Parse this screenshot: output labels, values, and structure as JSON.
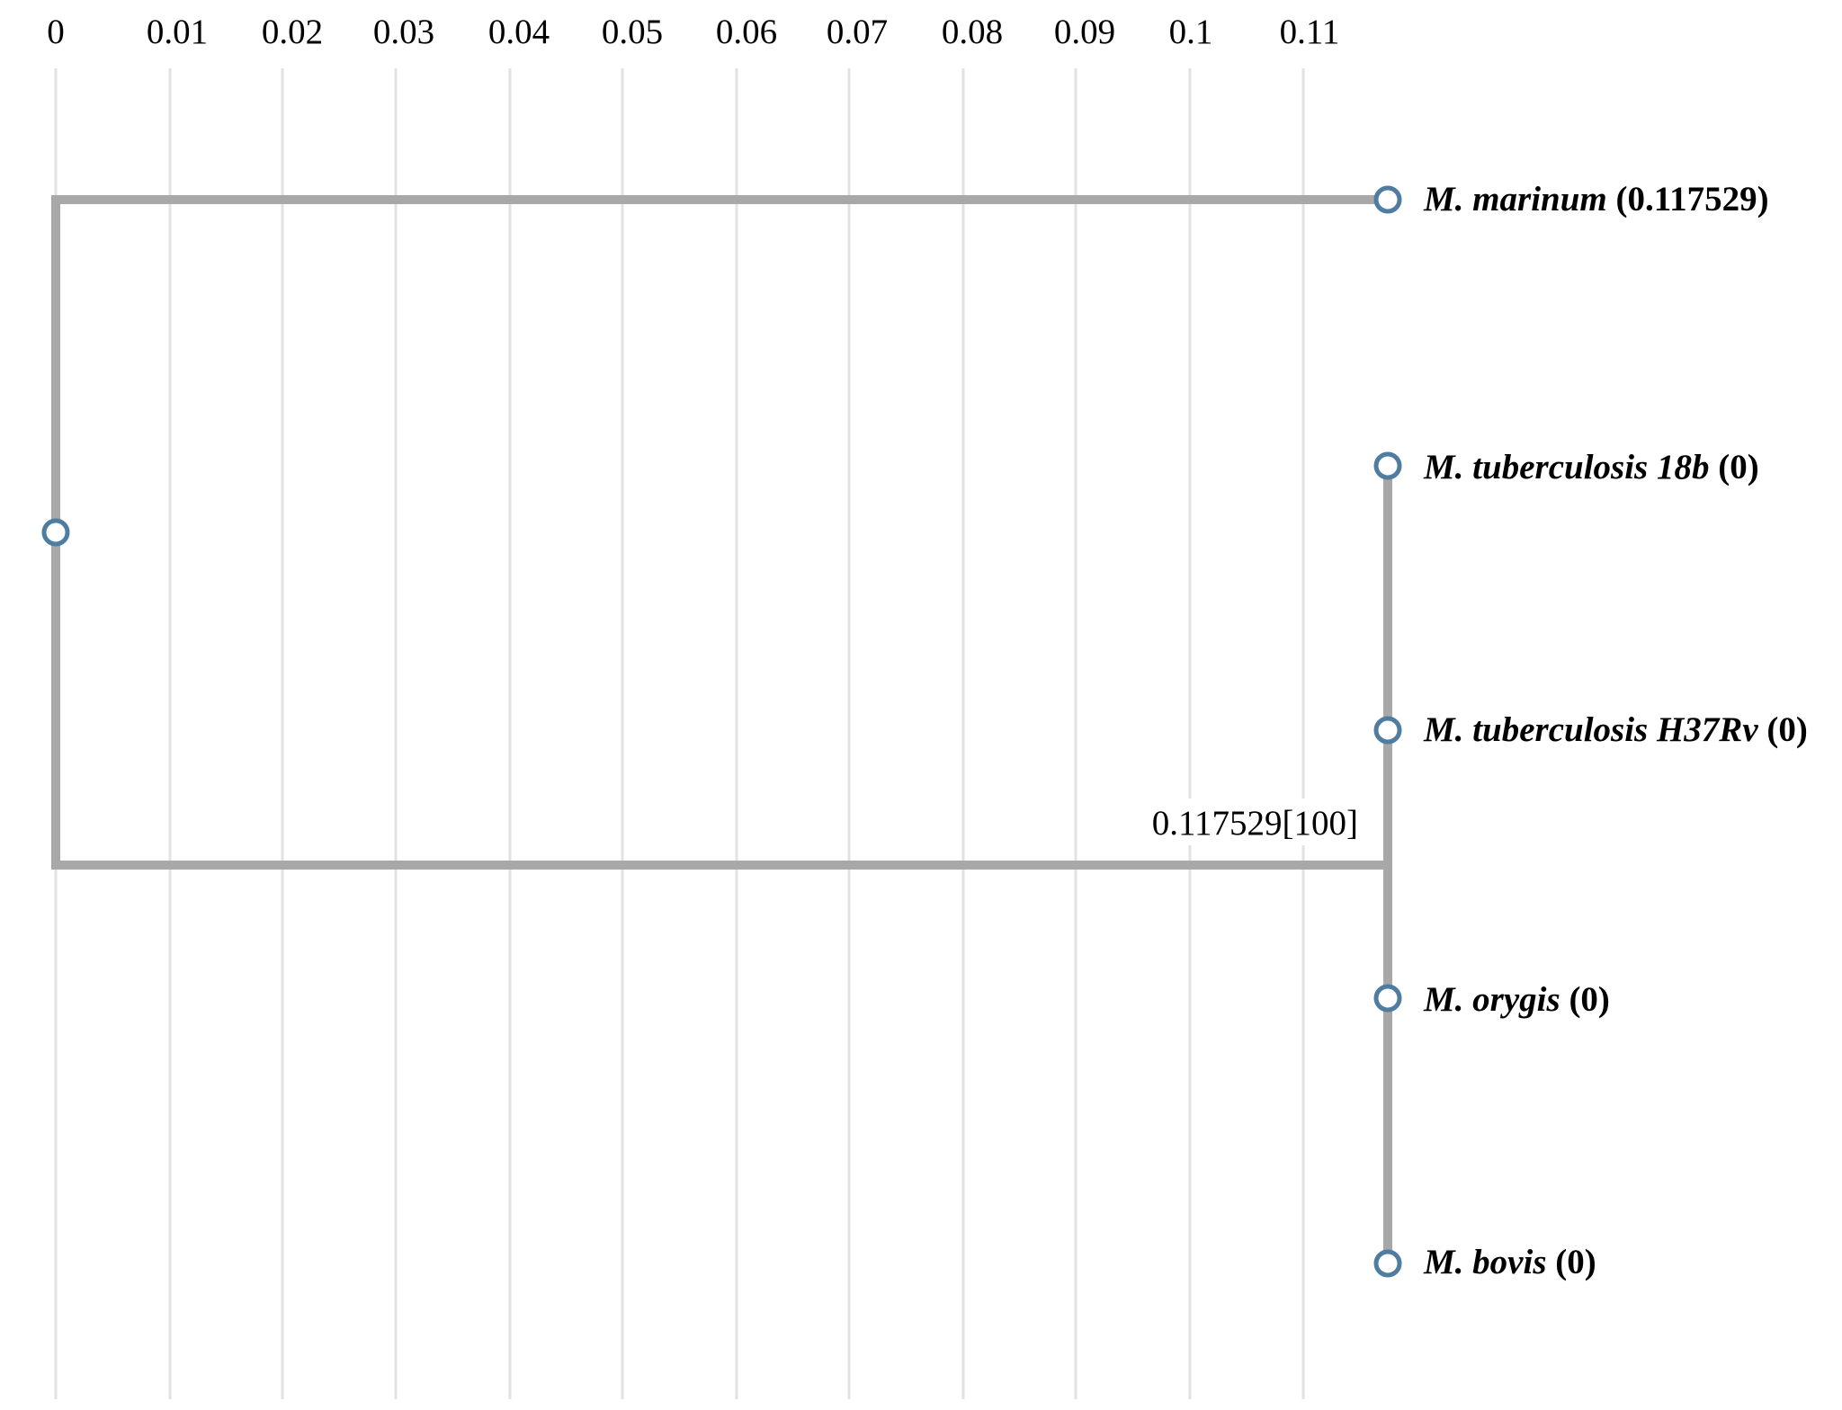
{
  "tree": {
    "axis": {
      "ticks": [
        "0",
        "0.01",
        "0.02",
        "0.03",
        "0.04",
        "0.05",
        "0.06",
        "0.07",
        "0.08",
        "0.09",
        "0.1",
        "0.11"
      ]
    },
    "colors": {
      "branch": "#a8a8a8",
      "gridline": "#e2e2e2",
      "node_stroke": "#4f7ca1"
    },
    "leaves": [
      {
        "name": "M. marinum",
        "value": "(0.117529)"
      },
      {
        "name": "M. tuberculosis 18b",
        "value": "(0)"
      },
      {
        "name": "M. tuberculosis H37Rv",
        "value": "(0)"
      },
      {
        "name": "M. orygis",
        "value": "(0)"
      },
      {
        "name": "M. bovis",
        "value": "(0)"
      }
    ],
    "internal_node_label": "0.117529[100]"
  }
}
